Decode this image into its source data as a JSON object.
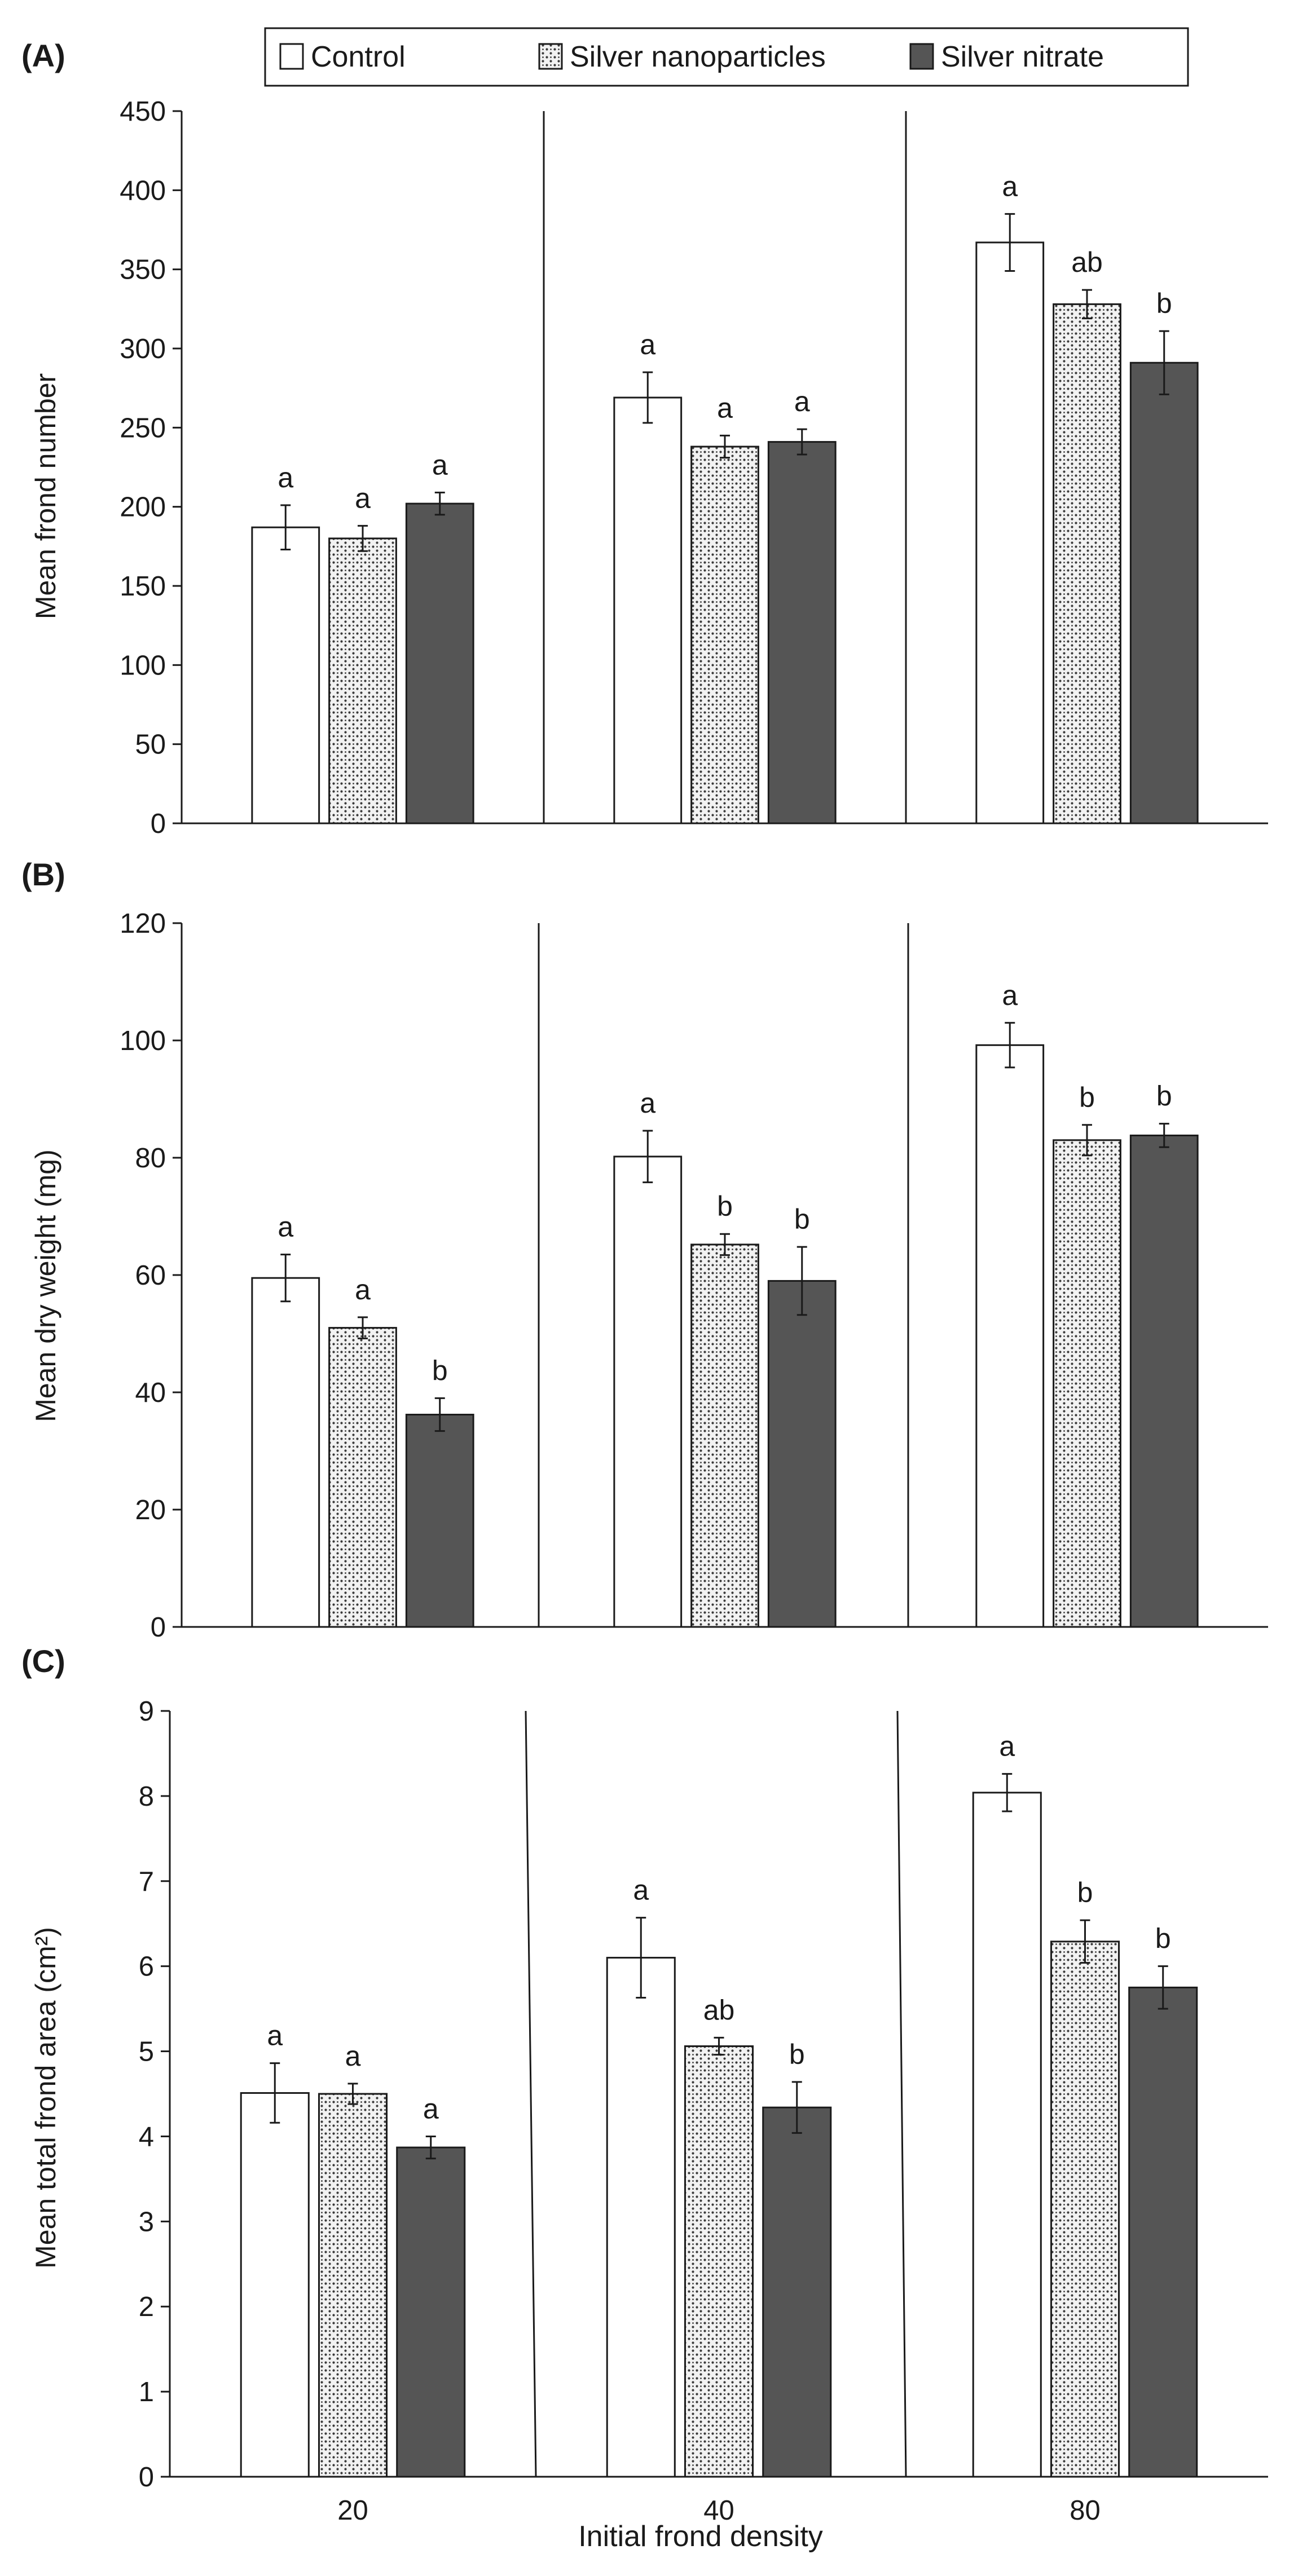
{
  "legend": [
    {
      "name": "Control",
      "pattern": "control"
    },
    {
      "name": "Silver nanoparticles",
      "pattern": "nano"
    },
    {
      "name": "Silver nitrate",
      "pattern": "nitrate"
    }
  ],
  "colors": {
    "axis": "#1a1a1a",
    "control_fill": "#ffffff",
    "nitrate_fill": "#555555",
    "nano_bg": "#f2f2f2",
    "nano_dots": "#3a3a3a"
  },
  "xlabel": "Initial frond density",
  "chart_data": [
    {
      "panel_label": "(A)",
      "type": "bar",
      "ylabel": "Mean frond number",
      "ylim": [
        0,
        450
      ],
      "ystep": 50,
      "categories": [
        "20",
        "40",
        "80"
      ],
      "series": [
        {
          "name": "Control",
          "values": [
            187,
            269,
            367
          ],
          "errors": [
            14,
            16,
            18
          ],
          "letters": [
            "a",
            "a",
            "a"
          ]
        },
        {
          "name": "Silver nanoparticles",
          "values": [
            180,
            238,
            328
          ],
          "errors": [
            8,
            7,
            9
          ],
          "letters": [
            "a",
            "a",
            "ab"
          ]
        },
        {
          "name": "Silver nitrate",
          "values": [
            202,
            241,
            291
          ],
          "errors": [
            7,
            8,
            20
          ],
          "letters": [
            "a",
            "a",
            "b"
          ]
        }
      ]
    },
    {
      "panel_label": "(B)",
      "type": "bar",
      "ylabel": "Mean dry weight (mg)",
      "ylim": [
        0,
        120
      ],
      "ystep": 20,
      "categories": [
        "20",
        "40",
        "80"
      ],
      "series": [
        {
          "name": "Control",
          "values": [
            59.5,
            80.2,
            99.2
          ],
          "errors": [
            4.0,
            4.4,
            3.8
          ],
          "letters": [
            "a",
            "a",
            "a"
          ]
        },
        {
          "name": "Silver nanoparticles",
          "values": [
            51.0,
            65.2,
            83.0
          ],
          "errors": [
            1.8,
            1.8,
            2.6
          ],
          "letters": [
            "a",
            "b",
            "b"
          ]
        },
        {
          "name": "Silver nitrate",
          "values": [
            36.2,
            59.0,
            83.8
          ],
          "errors": [
            2.8,
            5.8,
            2.0
          ],
          "letters": [
            "b",
            "b",
            "b"
          ]
        }
      ]
    },
    {
      "panel_label": "(C)",
      "type": "bar",
      "ylabel": "Mean total frond area (cm²)",
      "ylim": [
        0,
        9
      ],
      "ystep": 1,
      "categories": [
        "20",
        "40",
        "80"
      ],
      "series": [
        {
          "name": "Control",
          "values": [
            4.51,
            6.1,
            8.04
          ],
          "errors": [
            0.35,
            0.47,
            0.22
          ],
          "letters": [
            "a",
            "a",
            "a"
          ]
        },
        {
          "name": "Silver nanoparticles",
          "values": [
            4.5,
            5.06,
            6.29
          ],
          "errors": [
            0.12,
            0.1,
            0.25
          ],
          "letters": [
            "a",
            "ab",
            "b"
          ]
        },
        {
          "name": "Silver nitrate",
          "values": [
            3.87,
            4.34,
            5.75
          ],
          "errors": [
            0.13,
            0.3,
            0.25
          ],
          "letters": [
            "a",
            "b",
            "b"
          ]
        }
      ]
    }
  ]
}
